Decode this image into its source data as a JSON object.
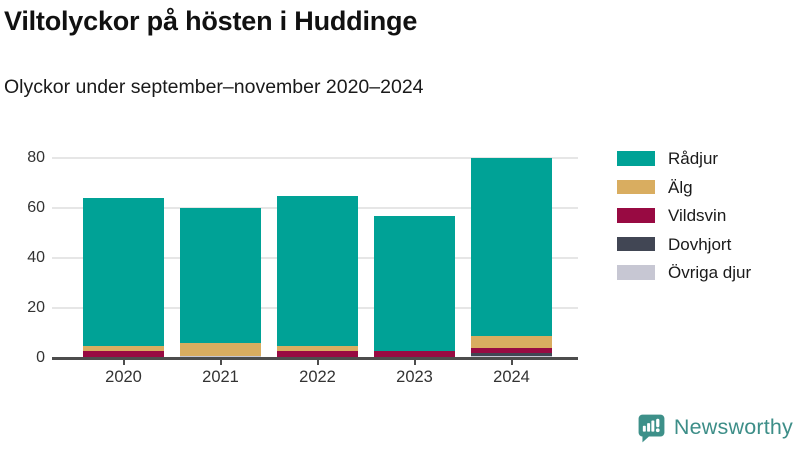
{
  "header": {
    "title": "Viltolyckor på hösten i Huddinge",
    "subtitle": "Olyckor under september–november 2020–2024"
  },
  "chart_data": {
    "type": "bar",
    "stacked": true,
    "title": "Viltolyckor på hösten i Huddinge",
    "subtitle": "Olyckor under september–november 2020–2024",
    "categories": [
      "2020",
      "2021",
      "2022",
      "2023",
      "2024"
    ],
    "series": [
      {
        "name": "Rådjur",
        "color": "#00a296",
        "values": [
          59,
          54,
          60,
          54,
          71
        ]
      },
      {
        "name": "Älg",
        "color": "#d9ad60",
        "values": [
          2,
          5,
          2,
          0,
          5
        ]
      },
      {
        "name": "Vildsvin",
        "color": "#980a42",
        "values": [
          3,
          0,
          3,
          3,
          2
        ]
      },
      {
        "name": "Dovhjort",
        "color": "#414654",
        "values": [
          0,
          0,
          0,
          0,
          1
        ]
      },
      {
        "name": "Övriga djur",
        "color": "#c7c7d3",
        "values": [
          0,
          1,
          0,
          0,
          1
        ]
      }
    ],
    "totals": [
      64,
      60,
      65,
      57,
      80
    ],
    "stack_order_bottom_to_top": [
      "Övriga djur",
      "Dovhjort",
      "Vildsvin",
      "Älg",
      "Rådjur"
    ],
    "xlabel": "",
    "ylabel": "",
    "y_ticks": [
      0,
      20,
      40,
      60,
      80
    ],
    "ylim": [
      0,
      85
    ],
    "grid": "horizontal",
    "legend_position": "right",
    "axis_color": "#4d4d4d",
    "gridline_color": "#e6e6e6"
  },
  "footer": {
    "brand": "Newsworthy"
  }
}
